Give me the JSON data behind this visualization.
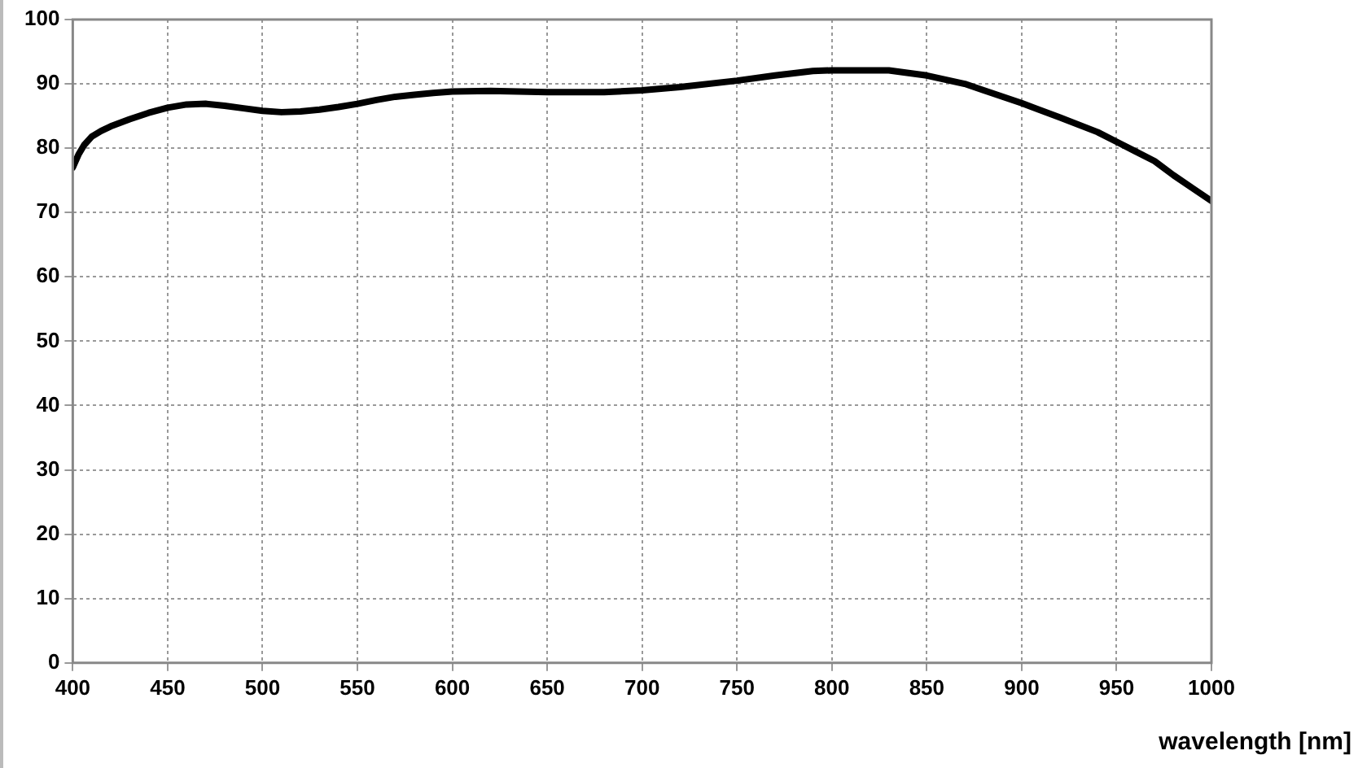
{
  "chart_data": {
    "type": "line",
    "xlabel": "wavelength [nm]",
    "x": [
      400,
      403,
      406,
      410,
      415,
      420,
      430,
      440,
      450,
      460,
      470,
      480,
      490,
      500,
      510,
      520,
      530,
      540,
      550,
      560,
      570,
      580,
      590,
      600,
      620,
      650,
      680,
      700,
      720,
      750,
      770,
      790,
      800,
      830,
      850,
      870,
      880,
      900,
      920,
      940,
      950,
      960,
      970,
      980,
      990,
      1000
    ],
    "series": [
      {
        "color": "#000000",
        "values": [
          77,
          79,
          80.5,
          81.8,
          82.7,
          83.4,
          84.5,
          85.5,
          86.3,
          86.8,
          86.9,
          86.6,
          86.2,
          85.8,
          85.6,
          85.7,
          86,
          86.4,
          86.9,
          87.5,
          88,
          88.3,
          88.6,
          88.8,
          88.9,
          88.7,
          88.7,
          89,
          89.5,
          90.5,
          91.3,
          92,
          92.1,
          92.1,
          91.3,
          90,
          89,
          87,
          84.8,
          82.5,
          81,
          79.5,
          78,
          75.8,
          73.8,
          71.8
        ]
      }
    ],
    "xlim": [
      400,
      1000
    ],
    "xticks": [
      400,
      450,
      500,
      550,
      600,
      650,
      700,
      750,
      800,
      850,
      900,
      950,
      1000
    ],
    "ylim": [
      0,
      100
    ],
    "yticks": [
      0,
      10,
      20,
      30,
      40,
      50,
      60,
      70,
      80,
      90,
      100
    ],
    "grid": true,
    "legend": false,
    "marker": "none",
    "line_style": "solid"
  }
}
